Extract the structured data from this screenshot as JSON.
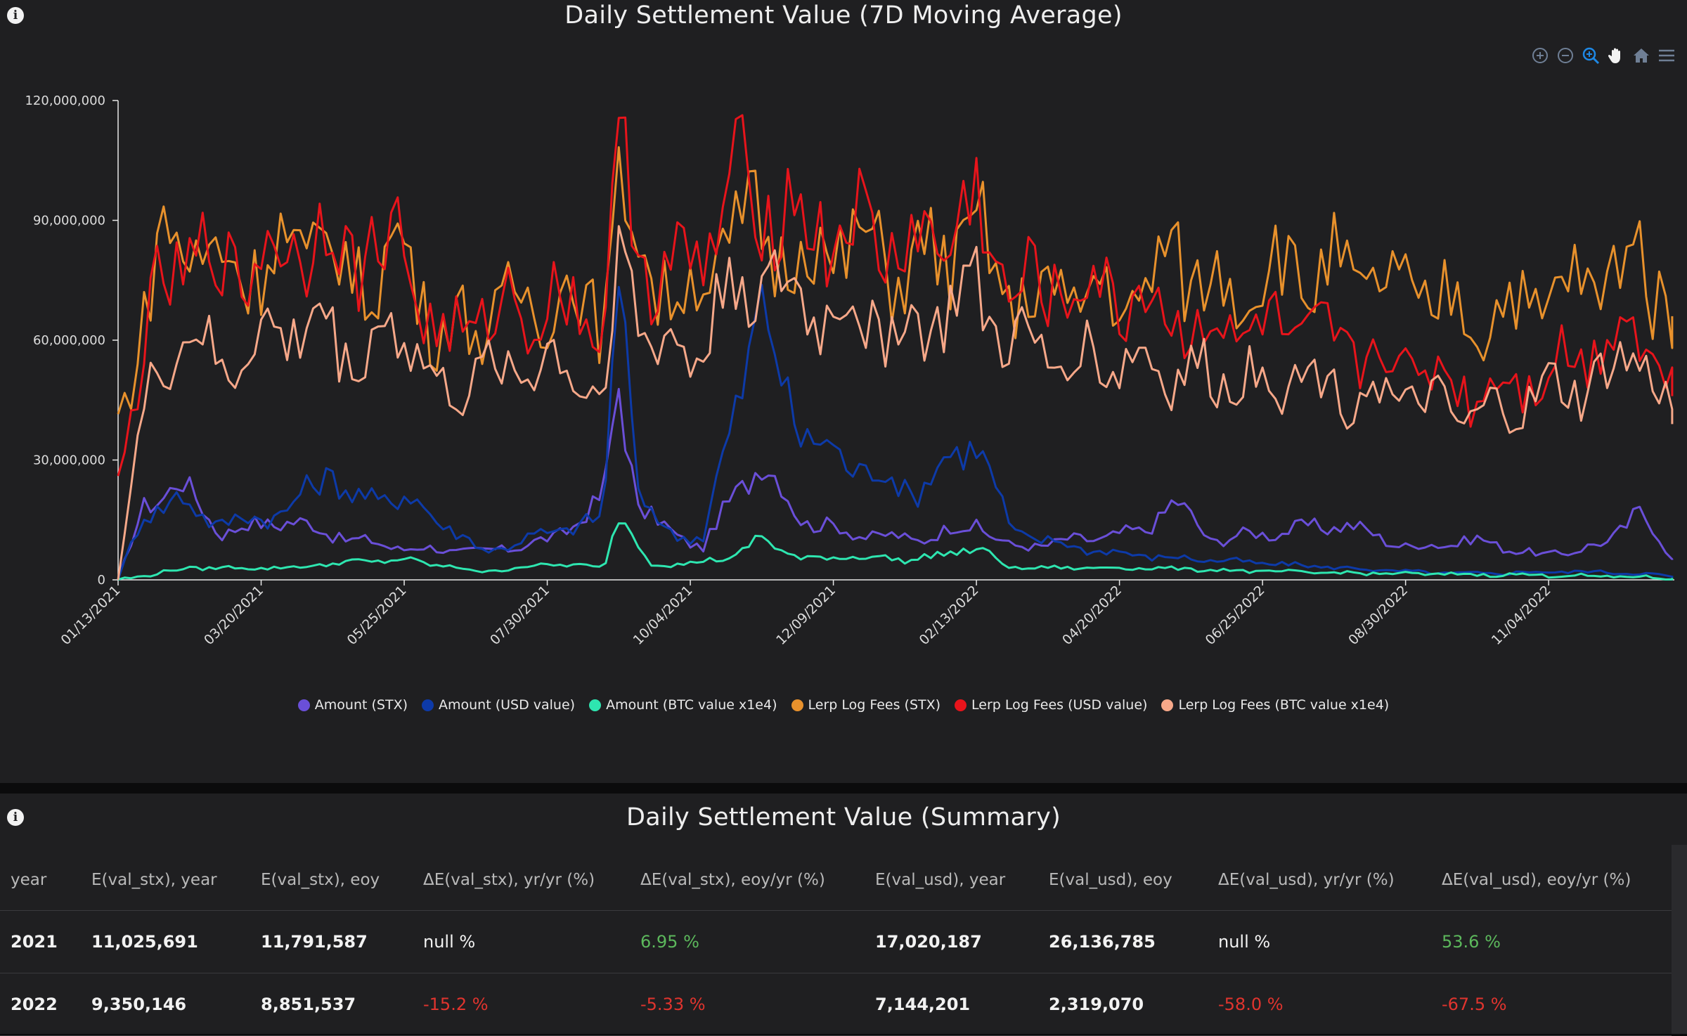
{
  "chart": {
    "title": "Daily Settlement Value (7D Moving Average)",
    "toolbar": [
      "zoom-in-icon",
      "zoom-out-icon",
      "selection-zoom-icon",
      "pan-icon",
      "home-icon",
      "menu-icon"
    ],
    "legend": [
      {
        "name": "Amount (STX)",
        "color": "#6a4fd8"
      },
      {
        "name": "Amount (USD value)",
        "color": "#0d3aa8"
      },
      {
        "name": "Amount (BTC value x1e4)",
        "color": "#2ee6b0"
      },
      {
        "name": "Lerp Log Fees (STX)",
        "color": "#e8912c"
      },
      {
        "name": "Lerp Log Fees (USD value)",
        "color": "#e8141b"
      },
      {
        "name": "Lerp Log Fees (BTC value x1e4)",
        "color": "#f7a889"
      }
    ]
  },
  "chart_data": {
    "type": "line",
    "xlabel": "",
    "ylabel": "",
    "ylim": [
      0,
      120000000
    ],
    "y_ticks": [
      "0",
      "30,000,000",
      "60,000,000",
      "90,000,000",
      "120,000,000"
    ],
    "x_tick_labels": [
      "01/13/2021",
      "03/20/2021",
      "05/25/2021",
      "07/30/2021",
      "10/04/2021",
      "12/09/2021",
      "02/13/2022",
      "04/20/2022",
      "06/25/2022",
      "08/30/2022",
      "11/04/2022"
    ],
    "x_range": [
      "01/13/2021",
      "01/01/2023"
    ],
    "grid": false,
    "legend_position": "bottom",
    "series": [
      {
        "name": "Amount (STX)",
        "color": "#6a4fd8",
        "x": [
          "01/13/2021",
          "01/25/2021",
          "02/10/2021",
          "03/01/2021",
          "04/01/2021",
          "05/01/2021",
          "05/25/2021",
          "07/01/2021",
          "08/01/2021",
          "08/25/2021",
          "09/01/2021",
          "09/10/2021",
          "09/25/2021",
          "10/10/2021",
          "10/25/2021",
          "11/05/2021",
          "11/25/2021",
          "12/15/2021",
          "01/15/2022",
          "02/13/2022",
          "03/01/2022",
          "04/01/2022",
          "05/01/2022",
          "05/15/2022",
          "06/01/2022",
          "07/01/2022",
          "08/01/2022",
          "09/01/2022",
          "10/01/2022",
          "11/01/2022",
          "12/01/2022",
          "12/15/2022",
          "12/31/2022"
        ],
        "y": [
          0,
          18000000,
          25000000,
          12000000,
          15000000,
          10000000,
          8000000,
          7000000,
          10000000,
          20000000,
          50000000,
          18000000,
          12000000,
          8000000,
          22000000,
          30000000,
          15000000,
          12000000,
          10000000,
          14000000,
          8000000,
          10000000,
          12000000,
          20000000,
          10000000,
          12000000,
          14000000,
          8000000,
          10000000,
          6000000,
          9000000,
          18000000,
          5000000
        ]
      },
      {
        "name": "Amount (USD value)",
        "color": "#0d3aa8",
        "x": [
          "01/13/2021",
          "01/25/2021",
          "02/10/2021",
          "03/01/2021",
          "04/01/2021",
          "04/20/2021",
          "05/01/2021",
          "05/25/2021",
          "07/01/2021",
          "08/01/2021",
          "08/25/2021",
          "09/01/2021",
          "09/10/2021",
          "09/25/2021",
          "10/10/2021",
          "10/25/2021",
          "11/05/2021",
          "11/25/2021",
          "12/15/2021",
          "01/15/2022",
          "02/13/2022",
          "03/01/2022",
          "04/01/2022",
          "05/01/2022",
          "06/01/2022",
          "07/01/2022",
          "08/01/2022",
          "09/01/2022",
          "10/01/2022",
          "11/01/2022",
          "12/01/2022",
          "12/31/2022"
        ],
        "y": [
          0,
          17000000,
          20000000,
          14000000,
          17000000,
          28000000,
          20000000,
          21000000,
          7000000,
          12000000,
          15000000,
          85000000,
          20000000,
          12000000,
          10000000,
          45000000,
          67000000,
          36000000,
          30000000,
          22000000,
          36000000,
          12000000,
          8000000,
          6000000,
          5000000,
          4000000,
          3000000,
          2000000,
          1500000,
          2000000,
          2000000,
          1000000
        ]
      },
      {
        "name": "Amount (BTC value x1e4)",
        "color": "#2ee6b0",
        "x": [
          "01/13/2021",
          "02/15/2021",
          "04/01/2021",
          "05/01/2021",
          "05/25/2021",
          "07/01/2021",
          "08/01/2021",
          "08/25/2021",
          "09/01/2021",
          "09/15/2021",
          "10/04/2021",
          "10/25/2021",
          "11/05/2021",
          "11/25/2021",
          "12/15/2021",
          "01/15/2022",
          "02/13/2022",
          "03/01/2022",
          "04/01/2022",
          "05/01/2022",
          "07/01/2022",
          "09/01/2022",
          "11/01/2022",
          "12/31/2022"
        ],
        "y": [
          0,
          3000000,
          3000000,
          4500000,
          5000000,
          2000000,
          4000000,
          3000000,
          17000000,
          4000000,
          4000000,
          6000000,
          10500000,
          5000000,
          6000000,
          5000000,
          8000000,
          3000000,
          3000000,
          3000000,
          2000000,
          1500000,
          1200000,
          500000
        ]
      },
      {
        "name": "Lerp Log Fees (STX)",
        "color": "#e8912c",
        "x": [
          "01/13/2021",
          "01/20/2021",
          "02/01/2021",
          "02/15/2021",
          "03/01/2021",
          "03/20/2021",
          "04/15/2021",
          "05/01/2021",
          "05/25/2021",
          "06/10/2021",
          "07/01/2021",
          "07/30/2021",
          "08/25/2021",
          "09/01/2021",
          "09/15/2021",
          "10/04/2021",
          "10/20/2021",
          "11/05/2021",
          "11/25/2021",
          "12/15/2021",
          "01/15/2022",
          "02/13/2022",
          "03/01/2022",
          "04/01/2022",
          "05/01/2022",
          "05/15/2022",
          "06/01/2022",
          "07/01/2022",
          "08/01/2022",
          "09/01/2022",
          "10/01/2022",
          "11/01/2022",
          "12/01/2022",
          "12/15/2022",
          "12/31/2022"
        ],
        "y": [
          40000000,
          55000000,
          83000000,
          86000000,
          78000000,
          80000000,
          85000000,
          75000000,
          82000000,
          62000000,
          65000000,
          72000000,
          68000000,
          96000000,
          78000000,
          70000000,
          85000000,
          88000000,
          80000000,
          84000000,
          78000000,
          86000000,
          70000000,
          72000000,
          70000000,
          83000000,
          72000000,
          78000000,
          76000000,
          72000000,
          66000000,
          70000000,
          76000000,
          83000000,
          66000000
        ]
      },
      {
        "name": "Lerp Log Fees (USD value)",
        "color": "#e8141b",
        "x": [
          "01/13/2021",
          "01/20/2021",
          "02/01/2021",
          "02/15/2021",
          "03/01/2021",
          "03/20/2021",
          "04/15/2021",
          "05/01/2021",
          "05/25/2021",
          "06/10/2021",
          "07/01/2021",
          "07/30/2021",
          "08/25/2021",
          "09/01/2021",
          "09/15/2021",
          "10/04/2021",
          "10/20/2021",
          "11/05/2021",
          "11/25/2021",
          "12/15/2021",
          "01/15/2022",
          "02/13/2022",
          "03/01/2022",
          "04/01/2022",
          "05/01/2022",
          "06/01/2022",
          "07/01/2022",
          "08/01/2022",
          "09/01/2022",
          "10/01/2022",
          "11/01/2022",
          "12/01/2022",
          "12/15/2022",
          "12/31/2022"
        ],
        "y": [
          25000000,
          45000000,
          72000000,
          82000000,
          78000000,
          80000000,
          88000000,
          82000000,
          84000000,
          58000000,
          66000000,
          70000000,
          66000000,
          102000000,
          80000000,
          75000000,
          95000000,
          99000000,
          88000000,
          88000000,
          82000000,
          92000000,
          72000000,
          73000000,
          70000000,
          62000000,
          62000000,
          58000000,
          54000000,
          47000000,
          52000000,
          60000000,
          66000000,
          46000000
        ]
      },
      {
        "name": "Lerp Log Fees (BTC value x1e4)",
        "color": "#f7a889",
        "x": [
          "01/13/2021",
          "01/20/2021",
          "02/01/2021",
          "02/15/2021",
          "03/01/2021",
          "03/20/2021",
          "04/15/2021",
          "05/01/2021",
          "05/25/2021",
          "06/10/2021",
          "07/01/2021",
          "07/30/2021",
          "08/25/2021",
          "09/01/2021",
          "09/15/2021",
          "10/04/2021",
          "10/20/2021",
          "11/05/2021",
          "11/25/2021",
          "12/15/2021",
          "01/15/2022",
          "02/13/2022",
          "03/01/2022",
          "04/01/2022",
          "05/01/2022",
          "06/01/2022",
          "07/01/2022",
          "08/01/2022",
          "09/01/2022",
          "10/01/2022",
          "11/01/2022",
          "12/01/2022",
          "12/15/2022",
          "12/31/2022"
        ],
        "y": [
          0,
          28000000,
          55000000,
          62000000,
          52000000,
          60000000,
          65000000,
          55000000,
          65000000,
          45000000,
          52000000,
          55000000,
          47000000,
          82000000,
          60000000,
          55000000,
          72000000,
          76000000,
          68000000,
          67000000,
          62000000,
          72000000,
          58000000,
          56000000,
          54000000,
          50000000,
          52000000,
          48000000,
          45000000,
          40000000,
          46000000,
          50000000,
          58000000,
          39000000
        ]
      }
    ]
  },
  "summary": {
    "title": "Daily Settlement Value (Summary)",
    "columns": [
      "year",
      "E(val_stx), year",
      "E(val_stx), eoy",
      "ΔE(val_stx), yr/yr (%)",
      "ΔE(val_stx), eoy/yr (%)",
      "E(val_usd), year",
      "E(val_usd), eoy",
      "ΔE(val_usd), yr/yr (%)",
      "ΔE(val_usd), eoy/yr (%)"
    ],
    "rows": [
      [
        "2021",
        "11,025,691",
        "11,791,587",
        "null %",
        "6.95 %",
        "17,020,187",
        "26,136,785",
        "null %",
        "53.6 %"
      ],
      [
        "2022",
        "9,350,146",
        "8,851,537",
        "-15.2 %",
        "-5.33 %",
        "7,144,201",
        "2,319,070",
        "-58.0 %",
        "-67.5 %"
      ]
    ],
    "colors": {
      "positive": "#5cb85c",
      "negative": "#e0342e"
    }
  }
}
